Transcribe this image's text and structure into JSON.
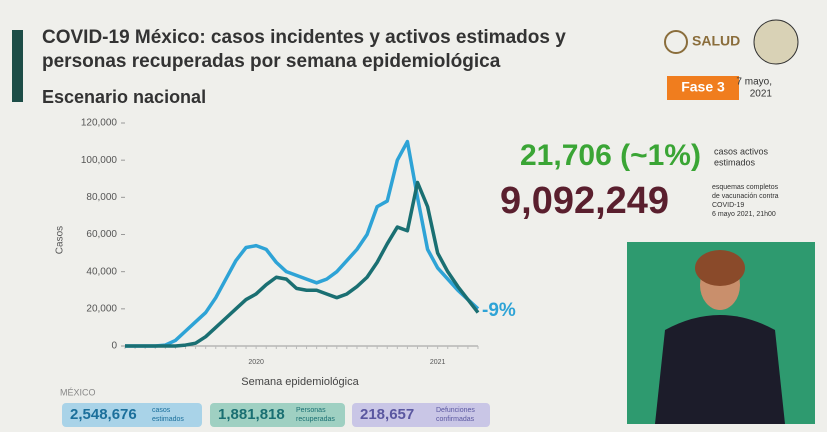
{
  "header": {
    "title_lines": [
      "COVID-19 México: casos incidentes y activos estimados y",
      "personas recuperadas por semana epidemiológica"
    ],
    "subtitle": "Escenario nacional",
    "logo": "SALUD",
    "phase": "Fase 3",
    "date_lines": [
      "7 mayo,",
      "2021"
    ]
  },
  "stats": {
    "active": "21,706 (~1%)",
    "active_label_lines": [
      "casos activos",
      "estimados"
    ],
    "vaccines": "9,092,249",
    "vaccines_label_lines": [
      "esquemas completos",
      "de vacunación contra",
      "COVID-19",
      "6 mayo 2021, 21h00"
    ]
  },
  "footer": {
    "place": "MÉXICO",
    "boxes": [
      {
        "value": "2,548,676",
        "label_lines": [
          "casos",
          "estimados"
        ]
      },
      {
        "value": "1,881,818",
        "label_lines": [
          "Personas",
          "recuperadas"
        ]
      },
      {
        "value": "218,657",
        "label_lines": [
          "Defunciones",
          "confirmadas"
        ]
      }
    ]
  },
  "chart_data": {
    "type": "line",
    "y_label": "Casos",
    "x_label": "Semana epidemiológica",
    "annotation": "-9%",
    "categories": [
      null,
      null,
      null,
      null,
      null,
      null,
      null,
      null,
      null,
      null,
      null,
      null,
      null,
      "2020",
      null,
      null,
      null,
      null,
      null,
      null,
      null,
      null,
      null,
      null,
      null,
      null,
      null,
      null,
      null,
      null,
      null,
      "2021",
      null,
      null,
      null,
      null
    ],
    "series": [
      {
        "color": "#2ea3d6",
        "values": [
          0,
          0,
          0,
          0,
          500,
          3000,
          8000,
          13000,
          18000,
          26000,
          36000,
          46000,
          53000,
          54000,
          52000,
          45000,
          40000,
          38000,
          36000,
          34000,
          36000,
          40000,
          46000,
          52000,
          60000,
          75000,
          78000,
          100000,
          110000,
          80000,
          52000,
          42000,
          36000,
          30000,
          25000,
          20000
        ]
      },
      {
        "color": "#1a6f72",
        "values": [
          0,
          0,
          0,
          0,
          0,
          0,
          500,
          1500,
          5000,
          10000,
          15000,
          20000,
          25000,
          28000,
          33000,
          37000,
          36000,
          31000,
          30000,
          30000,
          28000,
          26000,
          28000,
          32000,
          37000,
          45000,
          55000,
          64000,
          62000,
          88000,
          75000,
          50000,
          40000,
          32000,
          25000,
          18000
        ]
      }
    ],
    "ylim": [
      0,
      120000
    ],
    "yticks": [
      0,
      {
        "value": 20000,
        "label": "20,000"
      },
      {
        "value": 40000,
        "label": "40,000"
      },
      {
        "value": 60000,
        "label": "60,000"
      },
      {
        "value": 80000,
        "label": "80,000"
      },
      {
        "value": 100000,
        "label": "100,000"
      },
      {
        "value": 120000,
        "label": "120,000"
      }
    ],
    "grid": false
  }
}
